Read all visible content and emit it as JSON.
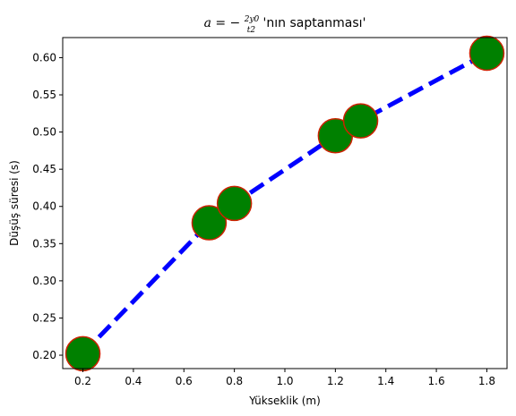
{
  "chart_data": {
    "type": "line",
    "title_prefix": "a = −",
    "title_frac_num": "2y0",
    "title_frac_den": "t2",
    "title_suffix": "'nın saptanması'",
    "xlabel": "Yükseklik (m)",
    "ylabel": "Düşüş süresi (s)",
    "xlim": [
      0.12,
      1.88
    ],
    "ylim": [
      0.182,
      0.627
    ],
    "xticks": [
      0.2,
      0.4,
      0.6,
      0.8,
      1.0,
      1.2,
      1.4,
      1.6,
      1.8
    ],
    "xtick_labels": [
      "0.2",
      "0.4",
      "0.6",
      "0.8",
      "1.0",
      "1.2",
      "1.4",
      "1.6",
      "1.8"
    ],
    "yticks": [
      0.2,
      0.25,
      0.3,
      0.35,
      0.4,
      0.45,
      0.5,
      0.55,
      0.6
    ],
    "ytick_labels": [
      "0.20",
      "0.25",
      "0.30",
      "0.35",
      "0.40",
      "0.45",
      "0.50",
      "0.55",
      "0.60"
    ],
    "grid": false,
    "series": [
      {
        "x": [
          0.2,
          0.7,
          0.8,
          1.2,
          1.3,
          1.8
        ],
        "y": [
          0.202,
          0.378,
          0.404,
          0.495,
          0.515,
          0.606
        ],
        "line_color": "#0000ff",
        "line_style": "dashed",
        "marker": "circle",
        "marker_face": "#008000",
        "marker_edge": "#cc2200"
      }
    ]
  }
}
